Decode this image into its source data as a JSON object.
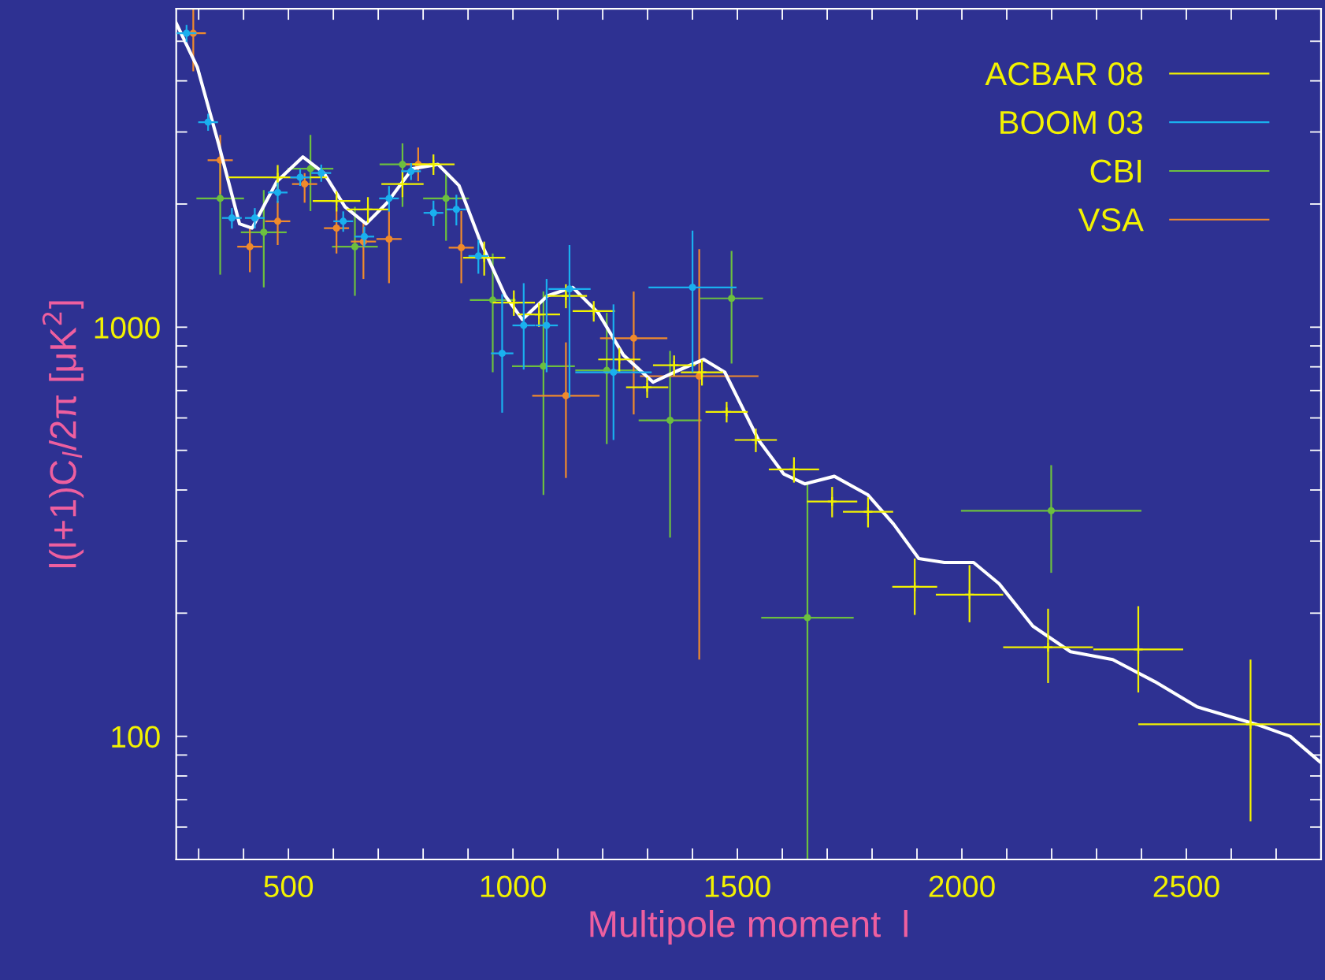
{
  "chart_data": {
    "type": "scatter",
    "xlabel": "Multipole moment  l",
    "ylabel": "l(l+1)C$_{l}$/2π [μK$^{2}$]",
    "xlim": [
      250,
      2800
    ],
    "xticks": [
      {
        "value": 300,
        "label": null
      },
      {
        "value": 400,
        "label": null
      },
      500,
      {
        "value": 600,
        "label": null
      },
      {
        "value": 700,
        "label": null
      },
      {
        "value": 800,
        "label": null
      },
      {
        "value": 900,
        "label": null
      },
      1000,
      {
        "value": 1100,
        "label": null
      },
      {
        "value": 1200,
        "label": null
      },
      {
        "value": 1300,
        "label": null
      },
      {
        "value": 1400,
        "label": null
      },
      1500,
      {
        "value": 1600,
        "label": null
      },
      {
        "value": 1700,
        "label": null
      },
      {
        "value": 1800,
        "label": null
      },
      {
        "value": 1900,
        "label": null
      },
      2000,
      {
        "value": 2100,
        "label": null
      },
      {
        "value": 2200,
        "label": null
      },
      {
        "value": 2300,
        "label": null
      },
      {
        "value": 2400,
        "label": null
      },
      2500,
      {
        "value": 2600,
        "label": null
      },
      {
        "value": 2700,
        "label": null
      }
    ],
    "log": "y",
    "ylim": [
      50,
      6000
    ],
    "yticks": [
      {
        "value": 60,
        "label": null
      },
      {
        "value": 70,
        "label": null
      },
      {
        "value": 80,
        "label": null
      },
      {
        "value": 90,
        "label": null
      },
      100,
      {
        "value": 200,
        "label": null
      },
      {
        "value": 300,
        "label": null
      },
      {
        "value": 400,
        "label": null
      },
      {
        "value": 500,
        "label": null
      },
      {
        "value": 600,
        "label": null
      },
      {
        "value": 700,
        "label": null
      },
      {
        "value": 800,
        "label": null
      },
      {
        "value": 900,
        "label": null
      },
      1000,
      {
        "value": 2000,
        "label": null
      },
      {
        "value": 3000,
        "label": null
      },
      {
        "value": 4000,
        "label": null
      },
      {
        "value": 5000,
        "label": null
      }
    ],
    "grid": false,
    "legend": "top right",
    "series": [
      {
        "name": "ACBAR 08",
        "marker": "cross",
        "color": "#f2f200",
        "x": [
          476,
          607,
          677,
          754,
          823,
          936,
          1002,
          1058,
          1118,
          1180,
          1237,
          1299,
          1359,
          1421,
          1476,
          1541,
          1626,
          1711,
          1791,
          1895,
          2017,
          2192,
          2393,
          2643
        ],
        "values": [
          2325,
          2034,
          1940,
          2239,
          2500,
          1478,
          1148,
          1074,
          1193,
          1095,
          834,
          713,
          807,
          776,
          621,
          530,
          449,
          375,
          354,
          232,
          222,
          165,
          163,
          107
        ],
        "errors": [
          166,
          116,
          139,
          160,
          143,
          141,
          82,
          72,
          80,
          63,
          56,
          41,
          46,
          56,
          36,
          35,
          32,
          32,
          30,
          [
            198,
            272
          ],
          [
            190,
            262
          ],
          [
            135,
            205
          ],
          [
            128,
            208
          ],
          [
            62,
            154
          ]
        ],
        "xerrors": [
          110,
          53,
          47,
          47,
          47,
          47,
          47,
          47,
          47,
          47,
          47,
          47,
          47,
          47,
          47,
          47,
          56,
          56,
          56,
          50,
          75,
          100,
          100,
          [
            2393,
            2800
          ]
        ]
      },
      {
        "name": "BOOM 03",
        "marker": "circle",
        "color": "#1ab0ef",
        "x": [
          273,
          321,
          374,
          425,
          476,
          526,
          573,
          622,
          669,
          724,
          773,
          823,
          874,
          923,
          976,
          1024,
          1075,
          1126,
          1224,
          1400
        ],
        "values": [
          5230,
          3170,
          1849,
          1849,
          2134,
          2325,
          2381,
          1815,
          1665,
          2064,
          2404,
          1903,
          1940,
          1493,
          863,
          1010,
          1010,
          1240,
          776,
          1251
        ],
        "errors": [
          250,
          151,
          106,
          106,
          122,
          111,
          114,
          104,
          95,
          148,
          115,
          136,
          167,
          142,
          [
            618,
            1204
          ],
          [
            788,
            1281
          ],
          [
            776,
            1312
          ],
          [
            673,
            1588
          ],
          [
            530,
            1137
          ],
          [
            776,
            1722
          ]
        ],
        "xerrors": [
          22,
          22,
          22,
          22,
          22,
          22,
          22,
          22,
          22,
          22,
          22,
          22,
          22,
          22,
          25,
          25,
          25,
          47,
          85,
          98
        ]
      },
      {
        "name": "CBI",
        "marker": "circle",
        "color": "#6cbf3f",
        "x": [
          348,
          445,
          549,
          648,
          754,
          851,
          955,
          1068,
          1209,
          1350,
          1487,
          1656,
          2199
        ],
        "values": [
          2064,
          1706,
          2440,
          1573,
          2500,
          2064,
          1165,
          803,
          784,
          592,
          1176,
          195,
          356
        ],
        "errors": [
          [
            1344,
            2560
          ],
          [
            1251,
            2164
          ],
          [
            1922,
            2951
          ],
          [
            1193,
            1968
          ],
          [
            1968,
            2815
          ],
          [
            1626,
            2381
          ],
          [
            776,
            1514
          ],
          [
            389,
            1222
          ],
          [
            518,
            1084
          ],
          [
            306,
            875
          ],
          [
            815,
            1536
          ],
          [
            50,
            418
          ],
          [
            251,
            460
          ]
        ],
        "xerrors": [
          53,
          51,
          51,
          51,
          51,
          51,
          51,
          70,
          70,
          70,
          70,
          103,
          201
        ]
      },
      {
        "name": "VSA",
        "marker": "circle",
        "color": "#f08a2c",
        "x": [
          288,
          348,
          414,
          476,
          536,
          607,
          667,
          724,
          789,
          885,
          1118,
          1269,
          1415
        ],
        "values": [
          5230,
          2560,
          1573,
          1815,
          2239,
          1746,
          1619,
          1642,
          2500,
          1565,
          680,
          940,
          759
        ],
        "errors": [
          [
            4220,
            6000
          ],
          [
            2115,
            2951
          ],
          [
            1363,
            1764
          ],
          [
            1588,
            2034
          ],
          [
            2015,
            2381
          ],
          [
            1514,
            1968
          ],
          [
            1312,
            1830
          ],
          [
            1281,
            1922
          ],
          [
            2273,
            2750
          ],
          [
            1281,
            1922
          ],
          [
            428,
            918
          ],
          [
            612,
            1222
          ],
          [
            154,
            1551
          ]
        ],
        "xerrors": [
          28,
          28,
          28,
          28,
          28,
          28,
          28,
          28,
          28,
          28,
          75,
          75,
          132
        ]
      },
      {
        "type": "line",
        "color": "#ffffff",
        "line_style": "solid",
        "x": [
          250,
          297,
          344,
          391,
          419,
          474,
          532,
          579,
          626,
          673,
          720,
          776,
          833,
          880,
          927,
          983,
          1021,
          1077,
          1133,
          1190,
          1246,
          1312,
          1359,
          1425,
          1472,
          1547,
          1603,
          1650,
          1716,
          1791,
          1848,
          1904,
          1961,
          2026,
          2083,
          2158,
          2242,
          2336,
          2430,
          2524,
          2656,
          2731,
          2797
        ],
        "values": [
          5535,
          4320,
          2815,
          1789,
          1746,
          2270,
          2607,
          2381,
          1968,
          1789,
          2015,
          2440,
          2500,
          2218,
          1626,
          1193,
          1044,
          1193,
          1251,
          1084,
          855,
          734,
          776,
          834,
          776,
          530,
          438,
          414,
          432,
          389,
          330,
          272,
          266,
          266,
          236,
          186,
          161,
          154,
          136,
          118,
          107,
          100,
          86.7
        ]
      }
    ]
  }
}
